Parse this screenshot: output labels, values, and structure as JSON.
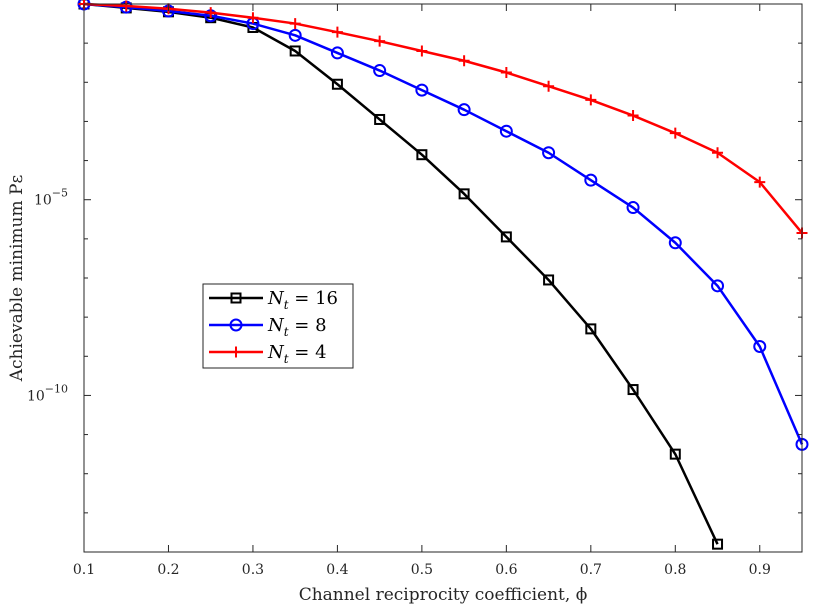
{
  "chart_data": {
    "type": "line",
    "title": "",
    "xlabel": "Channel reciprocity coefficient, ϕ",
    "ylabel": "Achievable minimum Pε",
    "xlim": [
      0.1,
      0.95
    ],
    "ylim_log10": [
      -14,
      0
    ],
    "yscale": "log",
    "x_ticks": [
      0.1,
      0.2,
      0.3,
      0.4,
      0.5,
      0.6,
      0.7,
      0.8,
      0.9
    ],
    "x_tick_labels": [
      "0.1",
      "0.2",
      "0.3",
      "0.4",
      "0.5",
      "0.6",
      "0.7",
      "0.8",
      "0.9"
    ],
    "y_ticks_log10": [
      -5,
      -10
    ],
    "y_tick_labels": [
      {
        "base": "10",
        "exp": "−5"
      },
      {
        "base": "10",
        "exp": "−10"
      }
    ],
    "grid": false,
    "legend_position": "center-left",
    "series": [
      {
        "name": "N_t = 16",
        "label_main": "N",
        "label_sub": "t",
        "label_rest": " = 16",
        "color": "#000000",
        "marker": "square",
        "x": [
          0.1,
          0.15,
          0.2,
          0.25,
          0.3,
          0.35,
          0.4,
          0.45,
          0.5,
          0.55,
          0.6,
          0.65,
          0.7,
          0.75,
          0.8,
          0.85
        ],
        "log10_y": [
          0,
          -0.1,
          -0.2,
          -0.35,
          -0.6,
          -1.2,
          -2.05,
          -2.95,
          -3.85,
          -4.85,
          -5.95,
          -7.05,
          -8.3,
          -9.85,
          -11.5,
          -13.8
        ]
      },
      {
        "name": "N_t = 8",
        "label_main": "N",
        "label_sub": "t",
        "label_rest": " = 8",
        "color": "#0000ff",
        "marker": "circle",
        "x": [
          0.1,
          0.15,
          0.2,
          0.25,
          0.3,
          0.35,
          0.4,
          0.45,
          0.5,
          0.55,
          0.6,
          0.65,
          0.7,
          0.75,
          0.8,
          0.85,
          0.9,
          0.95
        ],
        "log10_y": [
          0,
          -0.08,
          -0.18,
          -0.3,
          -0.5,
          -0.8,
          -1.25,
          -1.7,
          -2.2,
          -2.7,
          -3.25,
          -3.8,
          -4.5,
          -5.2,
          -6.1,
          -7.2,
          -8.75,
          -11.25
        ]
      },
      {
        "name": "N_t = 4",
        "label_main": "N",
        "label_sub": "t",
        "label_rest": " = 4",
        "color": "#ff0000",
        "marker": "plus",
        "x": [
          0.1,
          0.15,
          0.2,
          0.25,
          0.3,
          0.35,
          0.4,
          0.45,
          0.5,
          0.55,
          0.6,
          0.65,
          0.7,
          0.75,
          0.8,
          0.85,
          0.9,
          0.95
        ],
        "log10_y": [
          0,
          -0.05,
          -0.12,
          -0.22,
          -0.35,
          -0.5,
          -0.72,
          -0.95,
          -1.2,
          -1.45,
          -1.75,
          -2.1,
          -2.45,
          -2.85,
          -3.3,
          -3.8,
          -4.55,
          -5.85
        ]
      }
    ]
  }
}
